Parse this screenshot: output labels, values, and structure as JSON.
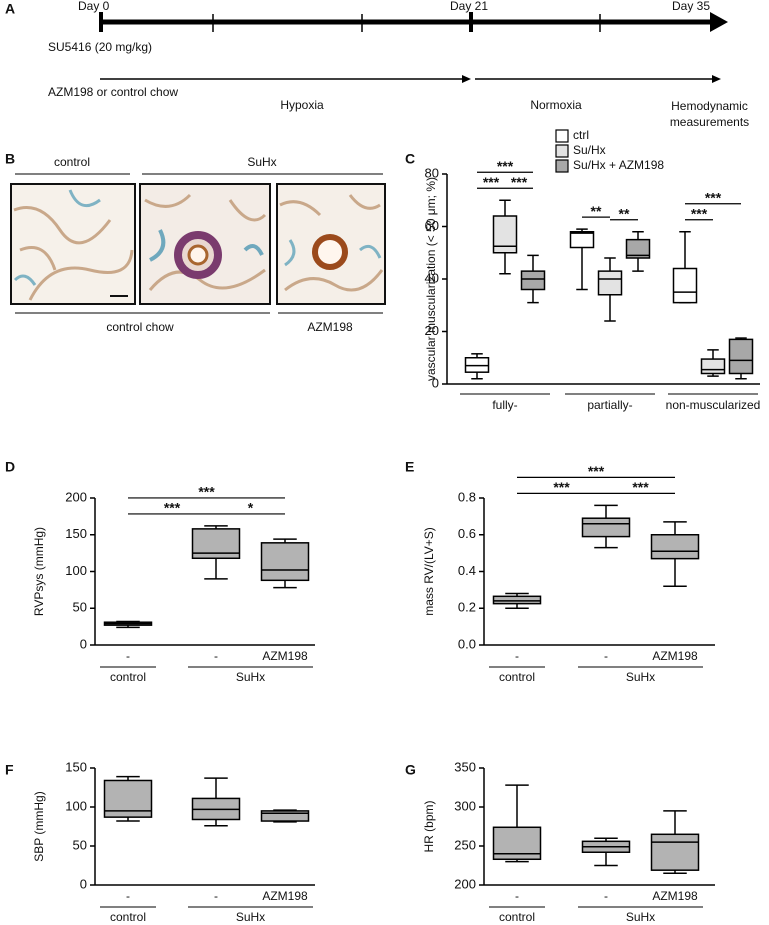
{
  "timeline": {
    "panel_label": "A",
    "days": [
      "Day 0",
      "Day 21",
      "Day 35"
    ],
    "treatment": "SU5416 (20 mg/kg)",
    "diet": "AZM198 or control chow",
    "phases": [
      "Hypoxia",
      "Normoxia"
    ],
    "endpoint": "Hemodynamic measurements"
  },
  "micrographs": {
    "panel_label": "B",
    "top_labels": [
      "control",
      "SuHx"
    ],
    "bottom_labels": [
      "control chow",
      "AZM198"
    ]
  },
  "chart_data": [
    {
      "panel_label": "C",
      "type": "box",
      "ylabel": "vascular muscularization (< 50 μm; %)",
      "categories": [
        "fully-",
        "partially-",
        "non-muscularized"
      ],
      "series": [
        {
          "name": "ctrl",
          "color": "#ffffff",
          "values": [
            {
              "min": 2,
              "q1": 4.5,
              "median": 7,
              "q3": 10,
              "max": 11.5
            },
            {
              "min": 36,
              "q1": 52,
              "median": 57.5,
              "q3": 58,
              "max": 59
            },
            {
              "min": 31,
              "q1": 31,
              "median": 35,
              "q3": 44,
              "max": 58
            }
          ]
        },
        {
          "name": "Su/Hx",
          "color": "#e3e3e3",
          "values": [
            {
              "min": 42,
              "q1": 50,
              "median": 52.5,
              "q3": 64,
              "max": 70
            },
            {
              "min": 24,
              "q1": 34,
              "median": 40,
              "q3": 43,
              "max": 48
            },
            {
              "min": 3,
              "q1": 4,
              "median": 5.5,
              "q3": 9.5,
              "max": 13
            }
          ]
        },
        {
          "name": "Su/Hx + AZM198",
          "color": "#a8a8a8",
          "values": [
            {
              "min": 31,
              "q1": 36,
              "median": 40,
              "q3": 43,
              "max": 49
            },
            {
              "min": 43,
              "q1": 48,
              "median": 49,
              "q3": 55,
              "max": 58
            },
            {
              "min": 2,
              "q1": 4,
              "median": 9,
              "q3": 17,
              "max": 17.5
            }
          ]
        }
      ],
      "ylim": [
        0,
        80
      ],
      "yticks": [
        0,
        20,
        40,
        60,
        80
      ],
      "legend": "upper right",
      "annotations": [
        {
          "text": "***",
          "between": [
            [
              0,
              0
            ],
            [
              0,
              1
            ]
          ]
        },
        {
          "text": "***",
          "between": [
            [
              0,
              1
            ],
            [
              0,
              2
            ]
          ]
        },
        {
          "text": "***",
          "between": [
            [
              0,
              0
            ],
            [
              0,
              2
            ]
          ]
        },
        {
          "text": "**",
          "between": [
            [
              1,
              0
            ],
            [
              1,
              1
            ]
          ]
        },
        {
          "text": "**",
          "between": [
            [
              1,
              1
            ],
            [
              1,
              2
            ]
          ]
        },
        {
          "text": "***",
          "between": [
            [
              2,
              0
            ],
            [
              2,
              1
            ]
          ]
        },
        {
          "text": "***",
          "between": [
            [
              2,
              0
            ],
            [
              2,
              2
            ]
          ]
        }
      ]
    },
    {
      "panel_label": "D",
      "type": "box",
      "ylabel": "RVPsys (mmHg)",
      "categories": [
        "-",
        "-",
        "AZM198"
      ],
      "groups": [
        {
          "label": "control",
          "from": 0,
          "to": 0
        },
        {
          "label": "SuHx",
          "from": 1,
          "to": 2
        }
      ],
      "color": "#b3b3b3",
      "values": [
        {
          "min": 24,
          "q1": 27,
          "median": 29,
          "q3": 31,
          "max": 32
        },
        {
          "min": 90,
          "q1": 118,
          "median": 125,
          "q3": 158,
          "max": 162
        },
        {
          "min": 78,
          "q1": 88,
          "median": 102,
          "q3": 139,
          "max": 144
        }
      ],
      "ylim": [
        0,
        200
      ],
      "yticks": [
        0,
        50,
        100,
        150,
        200
      ],
      "annotations": [
        {
          "text": "***",
          "between": [
            0,
            1
          ]
        },
        {
          "text": "*",
          "between": [
            1,
            2
          ]
        },
        {
          "text": "***",
          "between": [
            0,
            2
          ]
        }
      ]
    },
    {
      "panel_label": "E",
      "type": "box",
      "ylabel": "mass RV/(LV+S)",
      "categories": [
        "-",
        "-",
        "AZM198"
      ],
      "groups": [
        {
          "label": "control",
          "from": 0,
          "to": 0
        },
        {
          "label": "SuHx",
          "from": 1,
          "to": 2
        }
      ],
      "color": "#b3b3b3",
      "values": [
        {
          "min": 0.2,
          "q1": 0.225,
          "median": 0.24,
          "q3": 0.265,
          "max": 0.28
        },
        {
          "min": 0.53,
          "q1": 0.59,
          "median": 0.66,
          "q3": 0.69,
          "max": 0.76
        },
        {
          "min": 0.32,
          "q1": 0.47,
          "median": 0.51,
          "q3": 0.6,
          "max": 0.67
        }
      ],
      "ylim": [
        0,
        0.8
      ],
      "yticks": [
        {
          "value": 0,
          "label": "0.0"
        },
        0.2,
        0.4,
        0.6,
        0.8
      ],
      "annotations": [
        {
          "text": "***",
          "between": [
            0,
            1
          ]
        },
        {
          "text": "***",
          "between": [
            1,
            2
          ]
        },
        {
          "text": "***",
          "between": [
            0,
            2
          ]
        }
      ]
    },
    {
      "panel_label": "F",
      "type": "box",
      "ylabel": "SBP (mmHg)",
      "categories": [
        "-",
        "-",
        "AZM198"
      ],
      "groups": [
        {
          "label": "control",
          "from": 0,
          "to": 0
        },
        {
          "label": "SuHx",
          "from": 1,
          "to": 2
        }
      ],
      "color": "#b3b3b3",
      "values": [
        {
          "min": 82,
          "q1": 87,
          "median": 95,
          "q3": 134,
          "max": 139
        },
        {
          "min": 76,
          "q1": 84,
          "median": 97,
          "q3": 111,
          "max": 137
        },
        {
          "min": 81,
          "q1": 82,
          "median": 92,
          "q3": 95,
          "max": 96
        }
      ],
      "ylim": [
        0,
        150
      ],
      "yticks": [
        0,
        50,
        100,
        150
      ],
      "annotations": []
    },
    {
      "panel_label": "G",
      "type": "box",
      "ylabel": "HR (bpm)",
      "categories": [
        "-",
        "-",
        "AZM198"
      ],
      "groups": [
        {
          "label": "control",
          "from": 0,
          "to": 0
        },
        {
          "label": "SuHx",
          "from": 1,
          "to": 2
        }
      ],
      "color": "#b3b3b3",
      "values": [
        {
          "min": 230,
          "q1": 233,
          "median": 240,
          "q3": 274,
          "max": 328
        },
        {
          "min": 225,
          "q1": 242,
          "median": 249,
          "q3": 256,
          "max": 260
        },
        {
          "min": 215,
          "q1": 219,
          "median": 255,
          "q3": 265,
          "max": 295
        }
      ],
      "ylim": [
        200,
        350
      ],
      "yticks": [
        200,
        250,
        300,
        350
      ],
      "annotations": []
    }
  ]
}
